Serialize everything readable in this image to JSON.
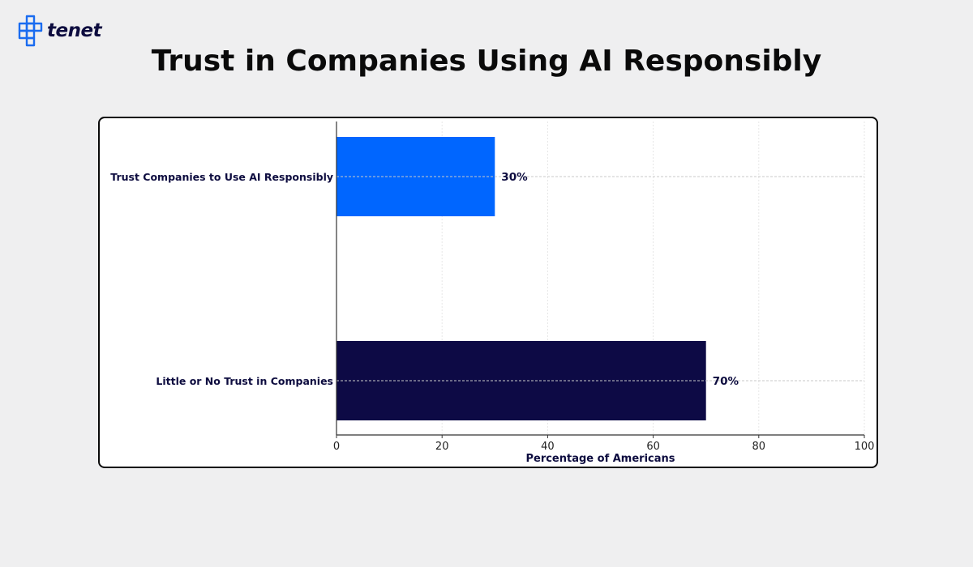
{
  "brand": {
    "logo_text": "tenet",
    "logo_color": "#1a6cf0",
    "logo_text_color": "#0d0c3f"
  },
  "page_title": "Trust in Companies Using AI Responsibly",
  "chart_data": {
    "type": "bar",
    "orientation": "horizontal",
    "title": "",
    "categories": [
      "Trust Companies to Use AI Responsibly",
      "Little or No Trust in Companies"
    ],
    "values": [
      30,
      70
    ],
    "value_labels": [
      "30%",
      "70%"
    ],
    "colors": [
      "#0066ff",
      "#0d0a45"
    ],
    "xlabel": "Percentage of Americans",
    "ylabel": "",
    "xlim": [
      0,
      100
    ],
    "xticks": [
      0,
      20,
      40,
      60,
      80,
      100
    ],
    "grid": true
  }
}
